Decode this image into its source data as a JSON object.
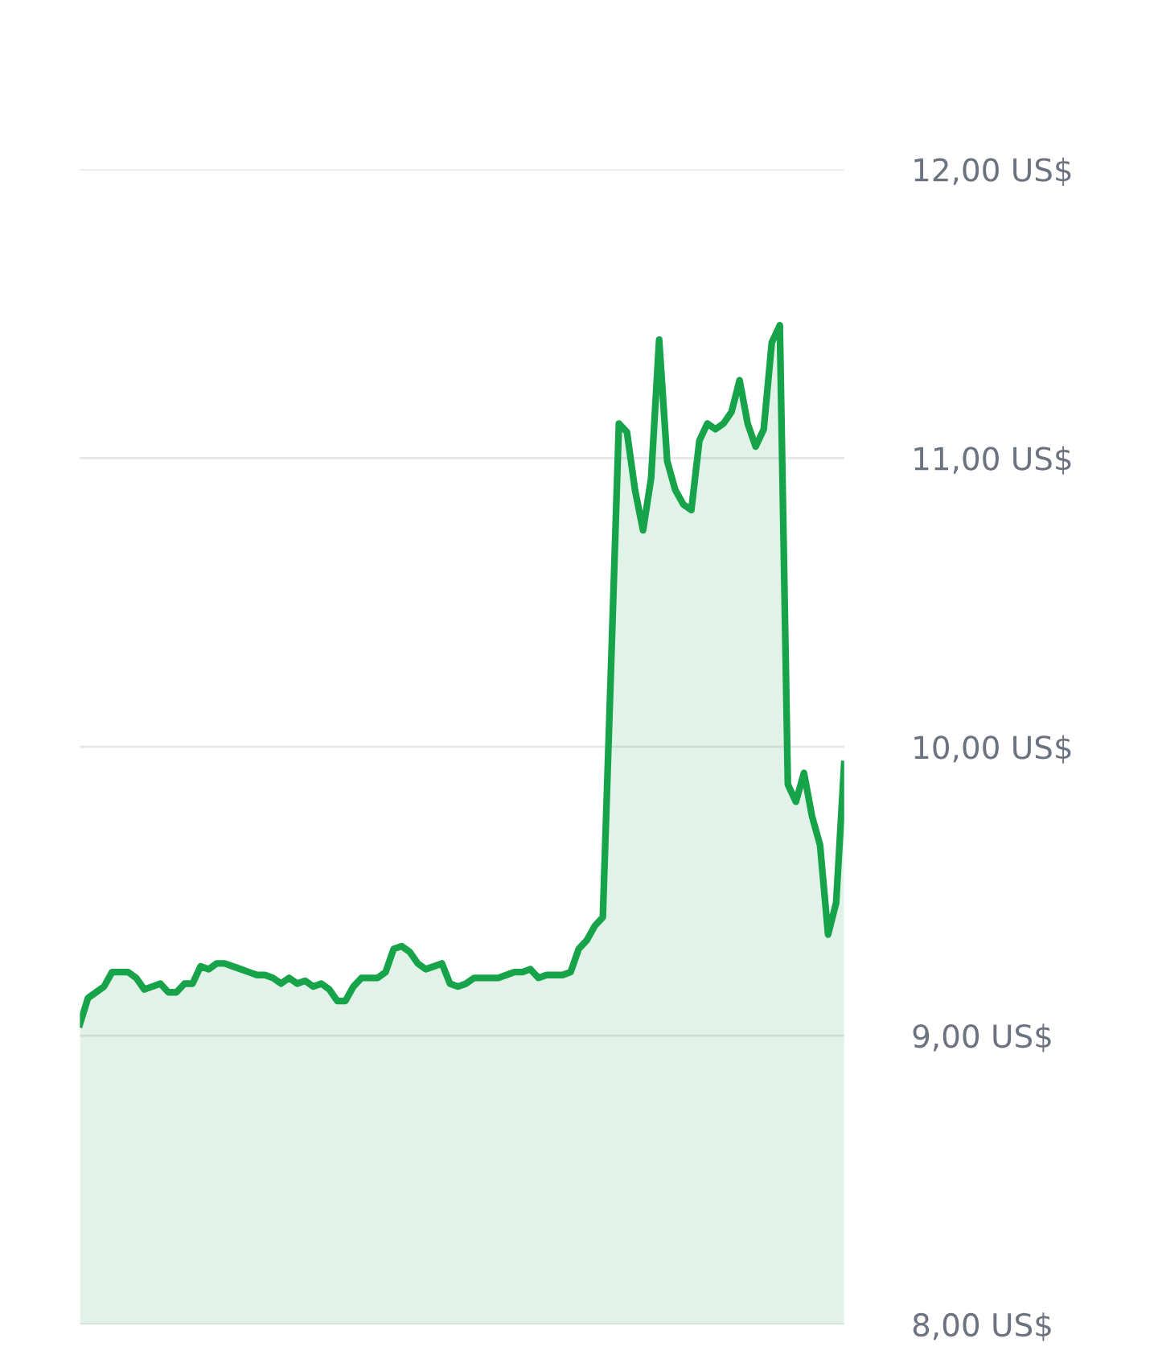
{
  "chart_data": {
    "type": "area",
    "categories": [
      null,
      null,
      null,
      null,
      null,
      null,
      null,
      null,
      null,
      null,
      null,
      null,
      null,
      null,
      null,
      null,
      null,
      null,
      null,
      null,
      null,
      null,
      null,
      null,
      null,
      null,
      null,
      null,
      null,
      null,
      null,
      null,
      null,
      null,
      null,
      null,
      null,
      null,
      null,
      null,
      null,
      null,
      null,
      null,
      null,
      null,
      null,
      null,
      null,
      null,
      null,
      null,
      null,
      null,
      null,
      null,
      null,
      null,
      null,
      null,
      null,
      null,
      null,
      null,
      null,
      null,
      null,
      null,
      null,
      null,
      null,
      null,
      null,
      null,
      null,
      null,
      null,
      null,
      null,
      null,
      null,
      null,
      null,
      null,
      null,
      null,
      null,
      null,
      null,
      null,
      null,
      null,
      null,
      null,
      null,
      null
    ],
    "series": [
      {
        "color": "#16a34a",
        "values": [
          9.04,
          9.13,
          9.15,
          9.17,
          9.22,
          9.22,
          9.22,
          9.2,
          9.16,
          9.17,
          9.18,
          9.15,
          9.15,
          9.18,
          9.18,
          9.24,
          9.23,
          9.25,
          9.25,
          9.24,
          9.23,
          9.22,
          9.21,
          9.21,
          9.2,
          9.18,
          9.2,
          9.18,
          9.19,
          9.17,
          9.18,
          9.16,
          9.12,
          9.12,
          9.17,
          9.2,
          9.2,
          9.2,
          9.22,
          9.3,
          9.31,
          9.29,
          9.25,
          9.23,
          9.24,
          9.25,
          9.18,
          9.17,
          9.18,
          9.2,
          9.2,
          9.2,
          9.2,
          9.21,
          9.22,
          9.22,
          9.23,
          9.2,
          9.21,
          9.21,
          9.21,
          9.22,
          9.3,
          9.33,
          9.38,
          9.41,
          10.26,
          11.12,
          11.09,
          10.89,
          10.75,
          10.93,
          11.41,
          10.99,
          10.89,
          10.84,
          10.82,
          11.06,
          11.12,
          11.1,
          11.12,
          11.16,
          11.27,
          11.12,
          11.04,
          11.1,
          11.4,
          11.46,
          9.87,
          9.81,
          9.91,
          9.76,
          9.66,
          9.35,
          9.46,
          9.94
        ]
      }
    ],
    "ylim": [
      8,
      12
    ],
    "yticks": [
      {
        "value": 8,
        "label": "8,00 US$"
      },
      {
        "value": 9,
        "label": "9,00 US$"
      },
      {
        "value": 10,
        "label": "10,00 US$"
      },
      {
        "value": 11,
        "label": "11,00 US$"
      },
      {
        "value": 12,
        "label": "12,00 US$"
      }
    ],
    "grid": "y",
    "tick_labels": "y"
  }
}
